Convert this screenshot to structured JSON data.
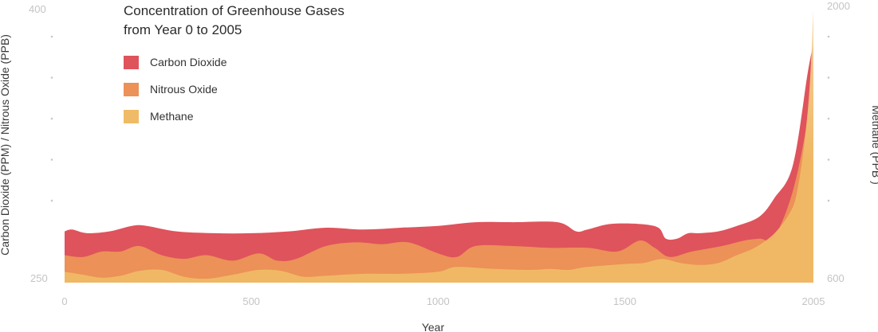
{
  "chart_data": {
    "type": "area",
    "title_lines": [
      "Concentration of Greenhouse Gases",
      "from Year 0 to 2005"
    ],
    "xlabel": "Year",
    "ylabel_left": "Carbon Dioxide (PPM) / Nitrous Oxide (PPB)",
    "ylabel_right": "Methane (PPB )",
    "xlim": [
      0,
      2005
    ],
    "ylim_left": [
      250,
      400
    ],
    "ylim_right": [
      600,
      2000
    ],
    "x_ticks": [
      "0",
      "500",
      "1000",
      "1500",
      "2005"
    ],
    "x_tick_values": [
      0,
      500,
      1000,
      1500,
      2005
    ],
    "y_left_ticks": [
      "400",
      "250"
    ],
    "y_right_ticks": [
      "2000",
      "600"
    ],
    "legend_position": "top-left",
    "series": [
      {
        "name": "Carbon Dioxide",
        "axis": "left",
        "color": "#df535c",
        "x": [
          0,
          20,
          60,
          120,
          180,
          220,
          300,
          400,
          500,
          600,
          700,
          800,
          900,
          1000,
          1100,
          1200,
          1320,
          1370,
          1400,
          1460,
          1540,
          1590,
          1610,
          1640,
          1670,
          1700,
          1750,
          1800,
          1860,
          1900,
          1950,
          1990,
          2005
        ],
        "y": [
          278,
          279,
          277,
          278,
          281,
          281,
          278,
          277,
          277,
          278,
          280,
          279,
          280,
          281,
          283,
          283,
          283,
          278,
          279,
          282,
          282,
          280,
          274,
          274,
          277,
          277,
          278,
          281,
          286,
          296,
          314,
          365,
          380
        ]
      },
      {
        "name": "Nitrous Oxide",
        "axis": "left",
        "color": "#ec9158",
        "x": [
          0,
          50,
          100,
          150,
          200,
          260,
          320,
          380,
          450,
          520,
          570,
          620,
          700,
          780,
          850,
          920,
          1000,
          1050,
          1100,
          1200,
          1300,
          1400,
          1480,
          1540,
          1580,
          1620,
          1680,
          1760,
          1820,
          1860,
          1900,
          1950,
          1990,
          2005
        ],
        "y": [
          265,
          264,
          267,
          267,
          270,
          265,
          263,
          265,
          262,
          266,
          262,
          263,
          270,
          272,
          271,
          272,
          266,
          264,
          270,
          270,
          269,
          269,
          267,
          273,
          269,
          264,
          267,
          270,
          273,
          274,
          275,
          300,
          340,
          370
        ]
      },
      {
        "name": "Methane",
        "axis": "right",
        "color": "#f0bb66",
        "fade_color": "#f6d7a2",
        "x": [
          0,
          50,
          100,
          150,
          200,
          260,
          320,
          380,
          450,
          520,
          580,
          640,
          700,
          800,
          900,
          1000,
          1050,
          1150,
          1250,
          1300,
          1350,
          1400,
          1500,
          1550,
          1600,
          1650,
          1700,
          1750,
          1800,
          1850,
          1900,
          1940,
          1960,
          1980,
          1995,
          2005
        ],
        "y": [
          655,
          640,
          625,
          635,
          660,
          665,
          630,
          620,
          640,
          665,
          660,
          630,
          635,
          645,
          645,
          655,
          680,
          670,
          665,
          670,
          665,
          680,
          695,
          700,
          720,
          700,
          690,
          700,
          740,
          780,
          850,
          950,
          1050,
          1300,
          1600,
          1990
        ]
      }
    ]
  }
}
